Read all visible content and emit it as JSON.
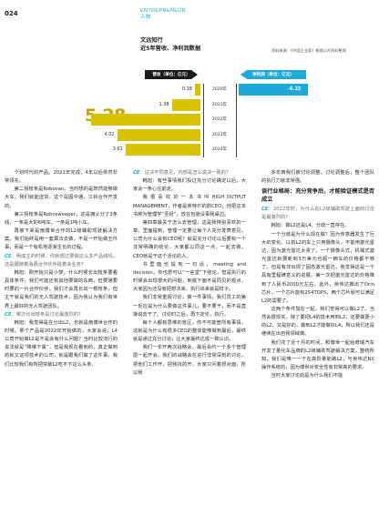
{
  "header": {
    "page_number": "024",
    "section_en": "ENTREPRENEUR",
    "section_zh": "人物",
    "headline_line1": "文远知行",
    "headline_line2": "近5年营收、净利润数据",
    "note": "资料来源：《中国企业家》根据公开资料整理"
  },
  "chart_data": {
    "type": "bar",
    "left_header": "营收（单位：亿元）",
    "right_header": "净利润（单位：亿元）",
    "categories": [
      "2020年",
      "2021年",
      "2022年",
      "2023年",
      "2024年"
    ],
    "series": [
      {
        "name": "营收（单位：亿元）",
        "values": [
          0.18,
          1.38,
          5.28,
          4.02,
          3.61
        ],
        "labels": [
          "0.18",
          "1.38",
          "5.28",
          "4.02",
          "3.61"
        ],
        "color": "#d8c300"
      },
      {
        "name": "净利润（单位：亿元）",
        "values": [
          -6.15,
          null,
          null,
          null,
          null
        ],
        "labels": [
          "-6.15",
          "",
          "",
          "",
          ""
        ],
        "color": "#1ea9d8"
      }
    ],
    "highlight_label": "5.28"
  },
  "col1": [
    {
      "type": "p",
      "text": "个划时代的产品。2021年完成，4年以后依然非常领先。"
    },
    {
      "type": "p",
      "text": "第二拐枝条是Robovan，当时想的是既然能够做大车，我们就能送货。这个是图中通、江铃合作开发的。"
    },
    {
      "type": "p",
      "text": "第三拐枝条是Robosweeper，这是拥义分了3条线，一条是大的6吨车，一条是1吨小车。"
    },
    {
      "type": "p",
      "text": "再接下来是扇博世合作的L2级辅助驾驶解决方案。我们始终是用一套算法去做，不是一开始做五件事，而是一个有机地逐渐生长的过程。"
    },
    {
      "type": "q",
      "mark": "CE",
      "text": "：明成主的时候，你就想过要做这么多产品线吗，还是跟随着消费合作伙伴挺着会业务？"
    },
    {
      "type": "p",
      "text": "韩旭：刚开始只是小梦，什么时候长出枝条要看具体条件。我们可能还有其他要做的东西，但要通要时要的一片合作伙伴。我们才会再长出一根枝条，但主干就是我们的无人驾驶技术，因为我认为我们有世界上最好的无人驾驶团队。"
    },
    {
      "type": "q",
      "mark": "CE",
      "text": "：哪次长出枝条是讨论最激烈的？"
    },
    {
      "type": "p",
      "text": "韩旭：我觉得是在分出L2，也就是扇博世合作的时候。那个产品是2022年开始做的，大家会说，L4公司开始做L2是不是会有什么问题？当时比较流行的说法就是“降维下属”，但是我现在看到的，真正做到的就又这项技术的公司，就是跟我们做了这件事，我们比较我们有所把突破L2吃不下这么头条。"
    }
  ],
  "col2": [
    {
      "type": "q",
      "mark": "CE",
      "text": "：这决不同意见，内部是怎么说决一致的？"
    },
    {
      "type": "p",
      "text": "韩旭：有些事情我们投过充分讨论确定以后，大家会一条心往前走。"
    },
    {
      "type": "p",
      "text": "我 很 喜 欢 的 一 本 书 叫 HIGH OUTPUT MANAGEMENT，作者是英特尔的前CEO，他把这本书称为管理学“圣经”，放在包装设事我桌边。"
    },
    {
      "type": "p",
      "text": "第四章最关于怎么去管理，这是我特别喜欢的一章。里面提到，管理一定要让每个人充分发表意见。公司为什么会有CEO呢？就是充分讨论以后要有一个非常明确的结论，大家都以同这一点，一起去做。CEO就是干这个活论的人。"
    },
    {
      "type": "p",
      "text": "书里面也提到一句话，meeting and decision，你也想可以“一言堂”下结论，但是执行的时候会出现很大的问题，到底下面不是同见的观点，大家因为还没有把想法来，执行出来就是样子。"
    },
    {
      "type": "p",
      "text": "我们非常重视讨论，做一件事情，我们员工的第一反应是为什么要做这件事儿，要不要干，而不是直接说去干了。讨论时之后，再下定论，执行。"
    },
    {
      "type": "p",
      "text": "每个人都有思维的盲区，你不可能管所有事情。这就是为什么有很多CEO的整体能够做到最后，最终就是通过充分讨论，让大家最终达成一致认识。"
    },
    {
      "type": "p",
      "text": "我们一年开两次战略会，最后会约一个多个管理层一起开会。我们的战略会在进行非常深刻的讨论，把他们工作开，把我找的开，大家只问着想对面，所以我"
    }
  ],
  "col3": [
    {
      "type": "p",
      "text": "多年西我们被讨论调整，讨论调整后，整个团队的执行力就非常强。"
    },
    {
      "type": "h",
      "text": "谈行业格局：充分竞争后，才能验证模式是否成立"
    },
    {
      "type": "q",
      "mark": "CE",
      "text": "：2022年时，为什么在L2级辅助驾驶上面的讨论是最激烈的？"
    },
    {
      "type": "p",
      "text": "韩旭：做L2还是L4，分歧一直存在。"
    },
    {
      "type": "p",
      "text": "一个分歧是为什么现在做？因为传感器发生了巨大的变化。以前L2的车上只用摄像头，不能用激光雷达，因为激光雷达太贵了。一个摄像头式，机械式激光雷达就要新到3万美元也超一辆车的价格都不够了。但是有非出现了固态激光雷达，我觉得这是一个具有里程碑意义的进展。第一次把激光雷达的价格降到了人民币2000元左右。此外，英伟达推出了Orin芯片，一个芯片能有254TOPS，两个芯片就可以满足L2的需要了。"
    },
    {
      "type": "p",
      "text": "这两个条件加在一起，我们觉得可以做L2了。当然会很现实，除了要把L4的技术用到L2，还要做更小的L2，又是好的，做到L2才能做好L4，所以我们还是继续在出自我领域做。"
    },
    {
      "type": "p",
      "text": "我们花了近十月的时间，和博世一起给奇瑞汽车开发了量化车品牌的L2级辅助驾驶解决方案，整统所知，我们是唯一一个在高阶量能路L2，与英伟达NX操作系统的，因为博世对安全性有非常高的要求。"
    },
    {
      "type": "p",
      "text": "当时大家讨论的是为什么我们不能"
    }
  ]
}
